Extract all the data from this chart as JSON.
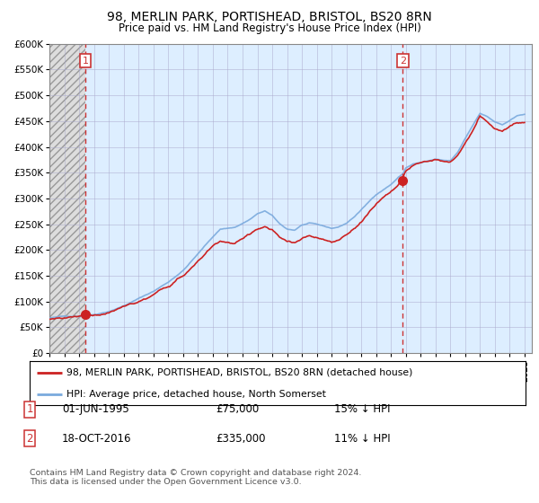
{
  "title": "98, MERLIN PARK, PORTISHEAD, BRISTOL, BS20 8RN",
  "subtitle": "Price paid vs. HM Land Registry's House Price Index (HPI)",
  "ylabel_ticks": [
    "£0",
    "£50K",
    "£100K",
    "£150K",
    "£200K",
    "£250K",
    "£300K",
    "£350K",
    "£400K",
    "£450K",
    "£500K",
    "£550K",
    "£600K"
  ],
  "ytick_values": [
    0,
    50000,
    100000,
    150000,
    200000,
    250000,
    300000,
    350000,
    400000,
    450000,
    500000,
    550000,
    600000
  ],
  "xlim_start": 1993.0,
  "xlim_end": 2025.5,
  "ylim_min": 0,
  "ylim_max": 600000,
  "hpi_color": "#7aaadd",
  "price_color": "#cc2222",
  "sale1_year": 1995.42,
  "sale1_price": 75000,
  "sale1_label": "1",
  "sale2_year": 2016.79,
  "sale2_price": 335000,
  "sale2_label": "2",
  "vline_color": "#cc3333",
  "marker_color": "#cc2222",
  "chart_bg_color": "#ddeeff",
  "hatch_bg_color": "#e8e8e8",
  "grid_color": "#aaaacc",
  "legend_label1": "98, MERLIN PARK, PORTISHEAD, BRISTOL, BS20 8RN (detached house)",
  "legend_label2": "HPI: Average price, detached house, North Somerset",
  "footnote": "Contains HM Land Registry data © Crown copyright and database right 2024.\nThis data is licensed under the Open Government Licence v3.0.",
  "sale1_date": "01-JUN-1995",
  "sale1_amount": "£75,000",
  "sale1_hpi": "15% ↓ HPI",
  "sale2_date": "18-OCT-2016",
  "sale2_amount": "£335,000",
  "sale2_hpi": "11% ↓ HPI"
}
